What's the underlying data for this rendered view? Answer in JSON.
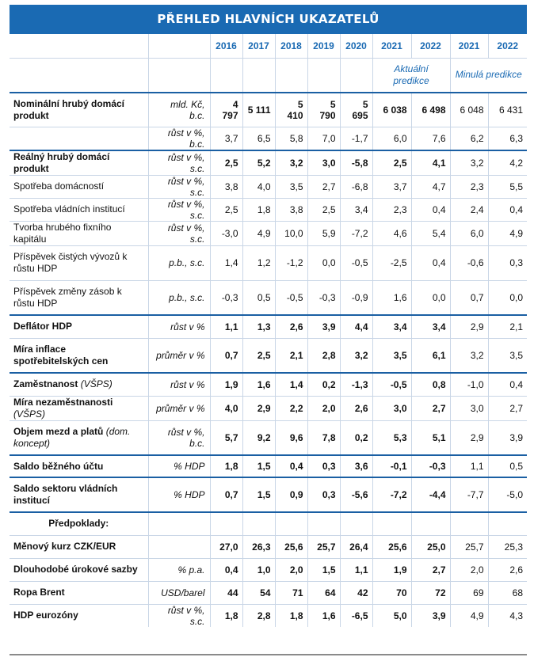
{
  "title": "PŘEHLED HLAVNÍCH UKAZATELŮ",
  "years": [
    "2016",
    "2017",
    "2018",
    "2019",
    "2020",
    "2021",
    "2022",
    "2021",
    "2022"
  ],
  "predictions": {
    "current": "Aktuální predikce",
    "previous": "Minulá predikce"
  },
  "rows": {
    "r0": {
      "label": "Nominální hrubý domácí produkt",
      "unit": "mld. Kč, b.c.",
      "values": [
        "4 797",
        "5 111",
        "5 410",
        "5 790",
        "5 695",
        "6 038",
        "6 498",
        "6 048",
        "6 431"
      ]
    },
    "r1": {
      "label": "",
      "unit": "růst v %, b.c.",
      "values": [
        "3,7",
        "6,5",
        "5,8",
        "7,0",
        "-1,7",
        "6,0",
        "7,6",
        "6,2",
        "6,3"
      ]
    },
    "r2": {
      "label": "Reálný hrubý domácí produkt",
      "unit": "růst v %, s.c.",
      "values": [
        "2,5",
        "5,2",
        "3,2",
        "3,0",
        "-5,8",
        "2,5",
        "4,1",
        "3,2",
        "4,2"
      ]
    },
    "r3": {
      "label": "Spotřeba domácností",
      "unit": "růst v %, s.c.",
      "values": [
        "3,8",
        "4,0",
        "3,5",
        "2,7",
        "-6,8",
        "3,7",
        "4,7",
        "2,3",
        "5,5"
      ]
    },
    "r4": {
      "label": "Spotřeba vládních institucí",
      "unit": "růst v %, s.c.",
      "values": [
        "2,5",
        "1,8",
        "3,8",
        "2,5",
        "3,4",
        "2,3",
        "0,4",
        "2,4",
        "0,4"
      ]
    },
    "r5": {
      "label": "Tvorba hrubého fixního kapitálu",
      "unit": "růst v %, s.c.",
      "values": [
        "-3,0",
        "4,9",
        "10,0",
        "5,9",
        "-7,2",
        "4,6",
        "5,4",
        "6,0",
        "4,9"
      ]
    },
    "r6": {
      "label": "Příspěvek čistých vývozů k růstu HDP",
      "unit": "p.b., s.c.",
      "values": [
        "1,4",
        "1,2",
        "-1,2",
        "0,0",
        "-0,5",
        "-2,5",
        "0,4",
        "-0,6",
        "0,3"
      ]
    },
    "r7": {
      "label": "Příspěvek změny zásob k růstu HDP",
      "unit": "p.b., s.c.",
      "values": [
        "-0,3",
        "0,5",
        "-0,5",
        "-0,3",
        "-0,9",
        "1,6",
        "0,0",
        "0,7",
        "0,0"
      ]
    },
    "r8": {
      "label": "Deflátor HDP",
      "unit": "růst v %",
      "values": [
        "1,1",
        "1,3",
        "2,6",
        "3,9",
        "4,4",
        "3,4",
        "3,4",
        "2,9",
        "2,1"
      ]
    },
    "r9": {
      "label": "Míra inflace spotřebitelských cen",
      "unit": "průměr v %",
      "values": [
        "0,7",
        "2,5",
        "2,1",
        "2,8",
        "3,2",
        "3,5",
        "6,1",
        "3,2",
        "3,5"
      ]
    },
    "r10": {
      "label": "Zaměstnanost",
      "label_note": "(VŠPS)",
      "unit": "růst v %",
      "values": [
        "1,9",
        "1,6",
        "1,4",
        "0,2",
        "-1,3",
        "-0,5",
        "0,8",
        "-1,0",
        "0,4"
      ]
    },
    "r11": {
      "label": "Míra nezaměstnanosti",
      "label_note": "(VŠPS)",
      "unit": "průměr v %",
      "values": [
        "4,0",
        "2,9",
        "2,2",
        "2,0",
        "2,6",
        "3,0",
        "2,7",
        "3,0",
        "2,7"
      ]
    },
    "r12": {
      "label": "Objem mezd a platů",
      "label_note": "(dom. koncept)",
      "unit": "růst v %, b.c.",
      "values": [
        "5,7",
        "9,2",
        "9,6",
        "7,8",
        "0,2",
        "5,3",
        "5,1",
        "2,9",
        "3,9"
      ]
    },
    "r13": {
      "label": "Saldo běžného účtu",
      "unit": "% HDP",
      "values": [
        "1,8",
        "1,5",
        "0,4",
        "0,3",
        "3,6",
        "-0,1",
        "-0,3",
        "1,1",
        "0,5"
      ]
    },
    "r14": {
      "label": "Saldo sektoru vládních institucí",
      "unit": "% HDP",
      "values": [
        "0,7",
        "1,5",
        "0,9",
        "0,3",
        "-5,6",
        "-7,2",
        "-4,4",
        "-7,7",
        "-5,0"
      ]
    },
    "r15": {
      "label": "Předpoklady:"
    },
    "r16": {
      "label": "Měnový kurz CZK/EUR",
      "unit": "",
      "values": [
        "27,0",
        "26,3",
        "25,6",
        "25,7",
        "26,4",
        "25,6",
        "25,0",
        "25,7",
        "25,3"
      ]
    },
    "r17": {
      "label": "Dlouhodobé úrokové sazby",
      "unit": "% p.a.",
      "values": [
        "0,4",
        "1,0",
        "2,0",
        "1,5",
        "1,1",
        "1,9",
        "2,7",
        "2,0",
        "2,6"
      ]
    },
    "r18": {
      "label": "Ropa Brent",
      "unit": "USD/barel",
      "values": [
        "44",
        "54",
        "71",
        "64",
        "42",
        "70",
        "72",
        "69",
        "68"
      ]
    },
    "r19": {
      "label": "HDP eurozóny",
      "unit": "růst v %, s.c.",
      "values": [
        "1,8",
        "2,8",
        "1,8",
        "1,6",
        "-6,5",
        "5,0",
        "3,9",
        "4,9",
        "4,3"
      ]
    }
  },
  "colors": {
    "accent": "#1a6ab3",
    "thick_rule": "#1a5fa3",
    "grid": "#c9d6e6"
  }
}
